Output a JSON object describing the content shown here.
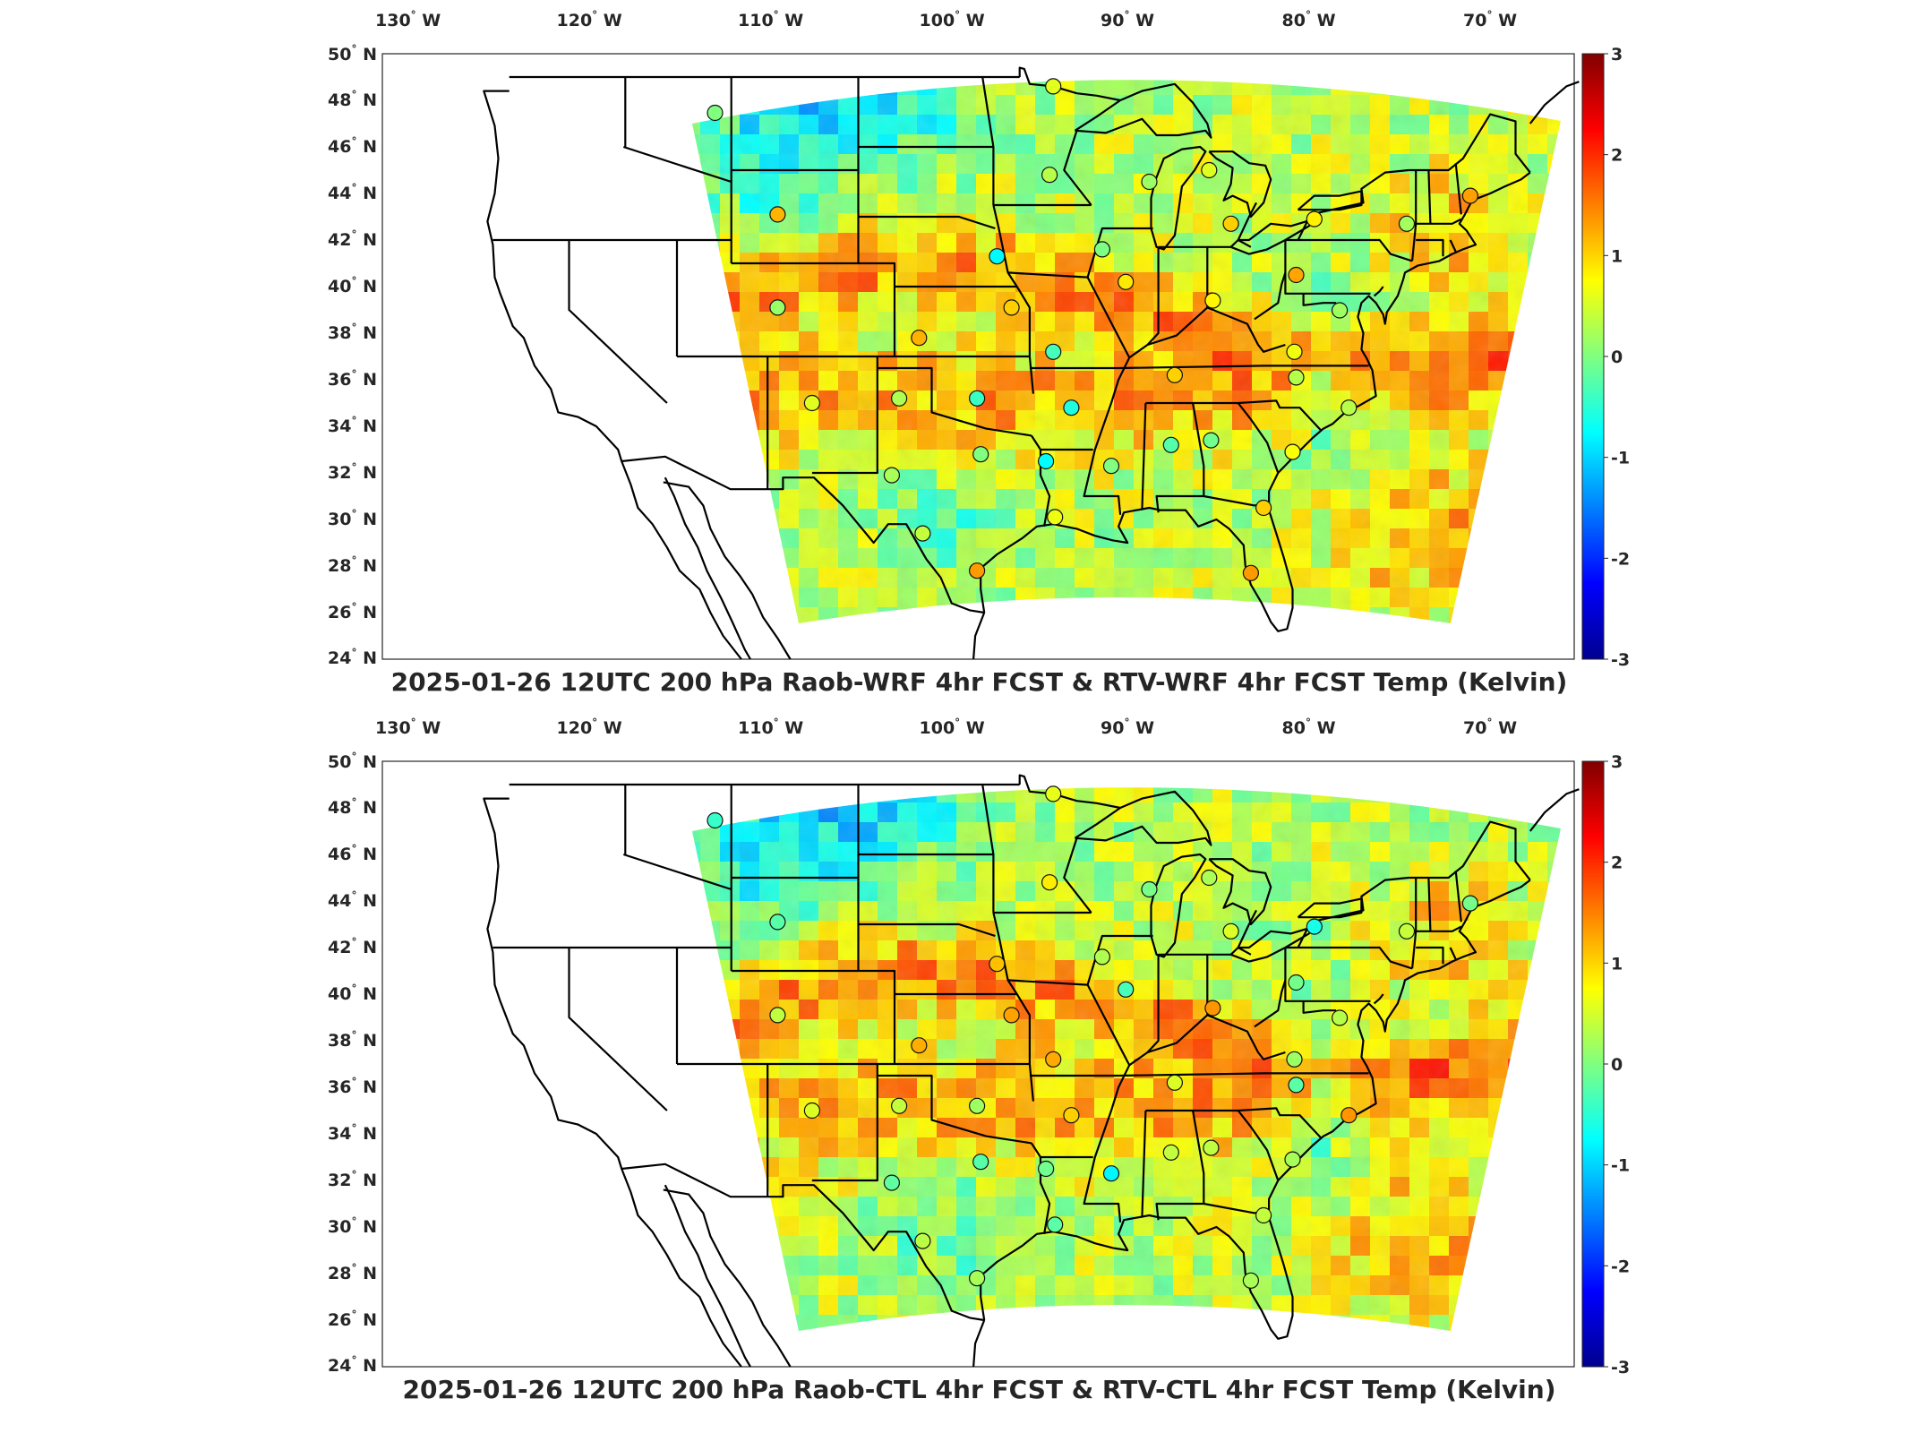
{
  "panels": [
    {
      "title": "2025-01-26 12UTC 200 hPa Raob-WRF 4hr FCST & RTV-WRF 4hr FCST Temp (Kelvin)"
    },
    {
      "title": "2025-01-26 12UTC 200 hPa Raob-CTL 4hr FCST & RTV-CTL 4hr FCST Temp (Kelvin)"
    }
  ],
  "map": {
    "lon_labels": [
      {
        "value": "130",
        "hemi": "W"
      },
      {
        "value": "120",
        "hemi": "W"
      },
      {
        "value": "110",
        "hemi": "W"
      },
      {
        "value": "100",
        "hemi": "W"
      },
      {
        "value": "90",
        "hemi": "W"
      },
      {
        "value": "80",
        "hemi": "W"
      },
      {
        "value": "70",
        "hemi": "W"
      }
    ],
    "lat_labels": [
      {
        "value": "50",
        "hemi": "N"
      },
      {
        "value": "48",
        "hemi": "N"
      },
      {
        "value": "46",
        "hemi": "N"
      },
      {
        "value": "44",
        "hemi": "N"
      },
      {
        "value": "42",
        "hemi": "N"
      },
      {
        "value": "40",
        "hemi": "N"
      },
      {
        "value": "38",
        "hemi": "N"
      },
      {
        "value": "36",
        "hemi": "N"
      },
      {
        "value": "34",
        "hemi": "N"
      },
      {
        "value": "32",
        "hemi": "N"
      },
      {
        "value": "30",
        "hemi": "N"
      },
      {
        "value": "28",
        "hemi": "N"
      },
      {
        "value": "26",
        "hemi": "N"
      },
      {
        "value": "24",
        "hemi": "N"
      }
    ]
  },
  "colorbar": {
    "ticks": [
      "3",
      "2",
      "1",
      "0",
      "-1",
      "-2",
      "-3"
    ],
    "range": [
      -3,
      3
    ],
    "colormap": "jet",
    "colors": [
      "#00008f",
      "#0000ff",
      "#00ffff",
      "#80ff80",
      "#ffff00",
      "#ff0000",
      "#800000"
    ]
  },
  "stations": [
    {
      "lon": -111.95,
      "lat": 47.46
    },
    {
      "lon": -108.5,
      "lat": 43.1
    },
    {
      "lon": -108.5,
      "lat": 39.1
    },
    {
      "lon": -106.6,
      "lat": 35.0
    },
    {
      "lon": -101.8,
      "lat": 35.2
    },
    {
      "lon": -100.7,
      "lat": 37.8
    },
    {
      "lon": -95.6,
      "lat": 39.1
    },
    {
      "lon": -96.4,
      "lat": 41.3
    },
    {
      "lon": -93.5,
      "lat": 44.8
    },
    {
      "lon": -93.3,
      "lat": 48.6
    },
    {
      "lon": -90.6,
      "lat": 41.6
    },
    {
      "lon": -89.3,
      "lat": 40.2
    },
    {
      "lon": -93.3,
      "lat": 37.2
    },
    {
      "lon": -97.5,
      "lat": 35.2
    },
    {
      "lon": -92.3,
      "lat": 34.8
    },
    {
      "lon": -97.3,
      "lat": 32.8
    },
    {
      "lon": -102.2,
      "lat": 31.9
    },
    {
      "lon": -100.5,
      "lat": 29.4
    },
    {
      "lon": -97.5,
      "lat": 27.8
    },
    {
      "lon": -93.2,
      "lat": 30.1
    },
    {
      "lon": -90.1,
      "lat": 32.3
    },
    {
      "lon": -93.7,
      "lat": 32.5
    },
    {
      "lon": -86.8,
      "lat": 33.2
    },
    {
      "lon": -84.6,
      "lat": 33.4
    },
    {
      "lon": -86.6,
      "lat": 36.2
    },
    {
      "lon": -84.5,
      "lat": 39.4
    },
    {
      "lon": -88.0,
      "lat": 44.5
    },
    {
      "lon": -84.7,
      "lat": 45.0
    },
    {
      "lon": -83.5,
      "lat": 42.7
    },
    {
      "lon": -79.9,
      "lat": 40.5
    },
    {
      "lon": -78.9,
      "lat": 42.9
    },
    {
      "lon": -73.8,
      "lat": 42.7
    },
    {
      "lon": -70.3,
      "lat": 43.9
    },
    {
      "lon": -77.5,
      "lat": 38.98
    },
    {
      "lon": -80.0,
      "lat": 37.2
    },
    {
      "lon": -79.9,
      "lat": 36.1
    },
    {
      "lon": -77.0,
      "lat": 34.8
    },
    {
      "lon": -80.1,
      "lat": 32.9
    },
    {
      "lon": -81.7,
      "lat": 30.5
    },
    {
      "lon": -82.4,
      "lat": 27.7
    }
  ]
}
